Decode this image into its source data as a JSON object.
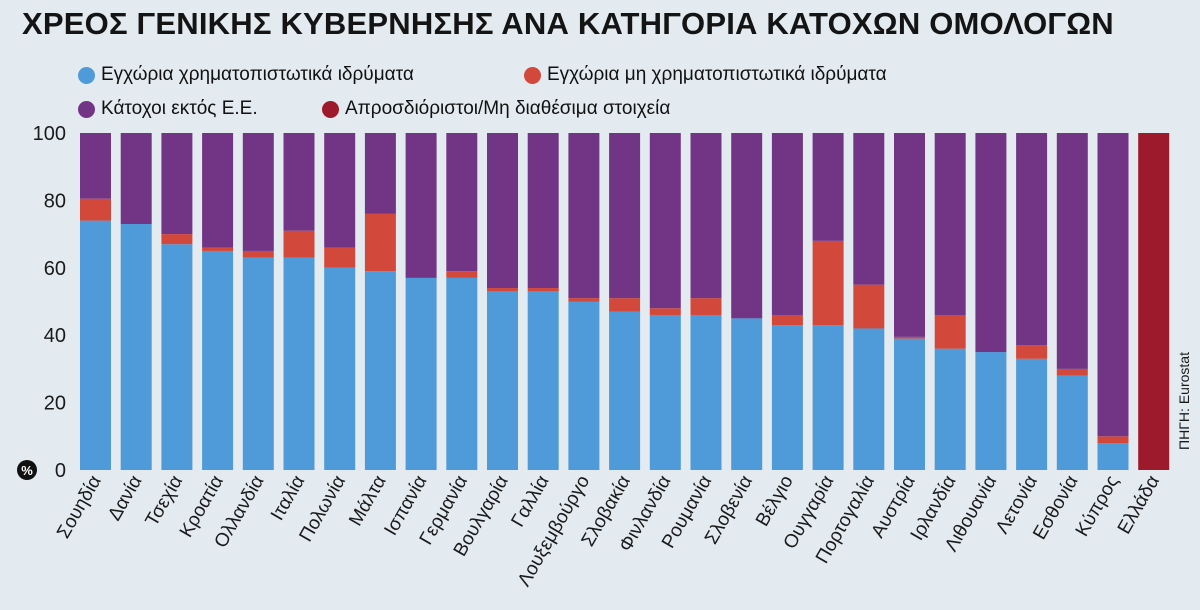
{
  "chart_data": {
    "type": "bar",
    "stacked": true,
    "title": "ΧΡΕΟΣ ΓΕΝΙΚΗΣ ΚΥΒΕΡΝΗΣΗΣ ΑΝΑ ΚΑΤΗΓΟΡΙΑ ΚΑΤΟΧΩΝ ΟΜΟΛΟΓΩΝ",
    "unit_label": "%",
    "source": "ΠΗΓΗ: Eurostat",
    "ylim": [
      0,
      100
    ],
    "yticks": [
      0,
      20,
      40,
      60,
      80,
      100
    ],
    "grid": false,
    "legend_position": "top-left",
    "categories": [
      "Σουηδία",
      "Δανία",
      "Τσεχία",
      "Κροατία",
      "Ολλανδία",
      "Ιταλία",
      "Πολωνία",
      "Μάλτα",
      "Ισπανία",
      "Γερμανία",
      "Βουλγαρία",
      "Γαλλία",
      "Λουξεμβούργο",
      "Σλοβακία",
      "Φινλανδία",
      "Ρουμανία",
      "Σλοβενία",
      "Βέλγιο",
      "Ουγγαρία",
      "Πορτογαλία",
      "Αυστρία",
      "Ιρλανδία",
      "Λιθουανία",
      "Λετονία",
      "Εσθονία",
      "Κύπρος",
      "Ελλάδα"
    ],
    "series": [
      {
        "name": "Εγχώρια χρηματοπιστωτικά ιδρύματα",
        "color": "#4f9ad9",
        "values": [
          74,
          73,
          67,
          65,
          63,
          63,
          60,
          59,
          57,
          57,
          53,
          53,
          50,
          47,
          46,
          46,
          45,
          43,
          43,
          42,
          39,
          36,
          35,
          33,
          28,
          8,
          0
        ]
      },
      {
        "name": "Εγχώρια μη χρηματοπιστωτικά ιδρύματα",
        "color": "#d2493c",
        "values": [
          6.5,
          0,
          3,
          1,
          2,
          8,
          6,
          17,
          0,
          2,
          1,
          1,
          1,
          4,
          2,
          5,
          0,
          3,
          25,
          13,
          0.5,
          10,
          0,
          4,
          2,
          2,
          0
        ]
      },
      {
        "name": "Κάτοχοι εκτός Ε.Ε.",
        "color": "#723586",
        "values": [
          19.5,
          27,
          30,
          34,
          35,
          29,
          34,
          24,
          43,
          41,
          46,
          46,
          49,
          49,
          52,
          49,
          55,
          54,
          32,
          45,
          60.5,
          54,
          65,
          63,
          70,
          90,
          0
        ]
      },
      {
        "name": "Απροσδιόριστοι/Μη διαθέσιμα στοιχεία",
        "color": "#9c1a2b",
        "values": [
          0,
          0,
          0,
          0,
          0,
          0,
          0,
          0,
          0,
          0,
          0,
          0,
          0,
          0,
          0,
          0,
          0,
          0,
          0,
          0,
          0,
          0,
          0,
          0,
          0,
          0,
          100
        ]
      }
    ]
  }
}
